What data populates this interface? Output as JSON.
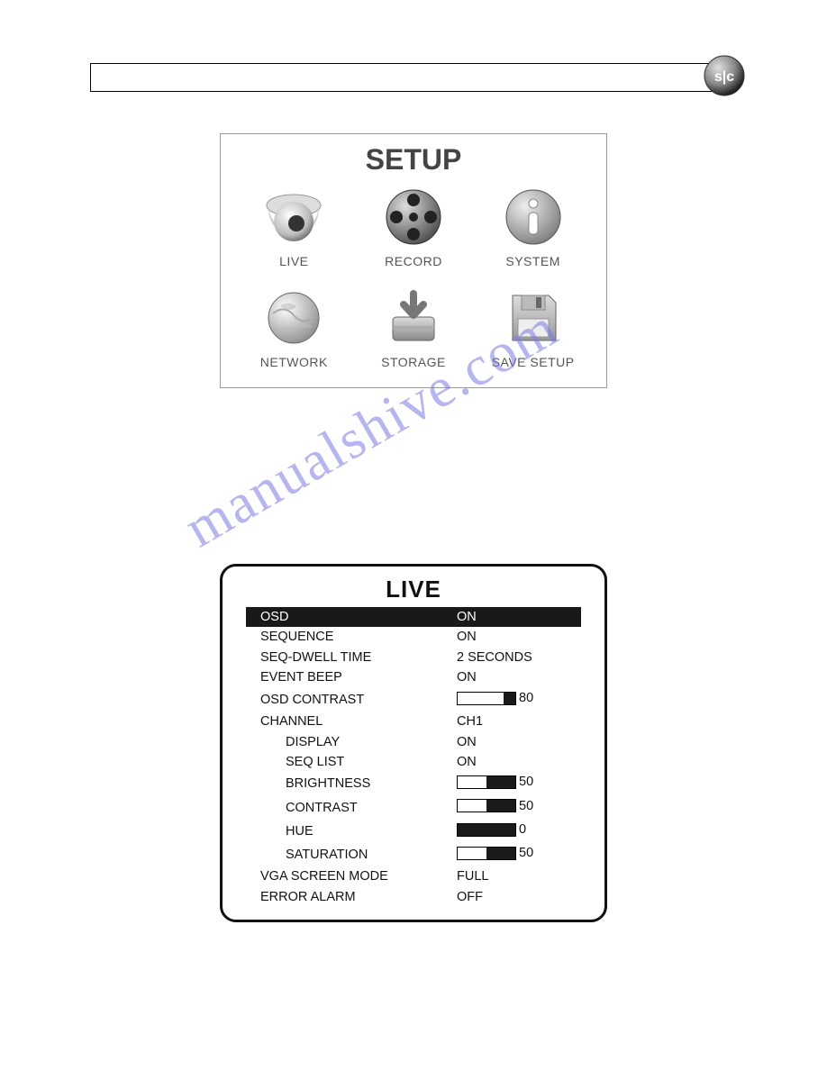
{
  "header": {
    "logo_text": "S|C"
  },
  "setup": {
    "title": "SETUP",
    "items": [
      {
        "label": "LIVE",
        "icon": "camera-dome-icon"
      },
      {
        "label": "RECORD",
        "icon": "film-reel-icon"
      },
      {
        "label": "SYSTEM",
        "icon": "info-icon"
      },
      {
        "label": "NETWORK",
        "icon": "globe-icon"
      },
      {
        "label": "STORAGE",
        "icon": "disk-download-icon"
      },
      {
        "label": "SAVE SETUP",
        "icon": "floppy-icon"
      }
    ]
  },
  "live": {
    "title": "LIVE",
    "rows": [
      {
        "label": "OSD",
        "value": "ON",
        "type": "text",
        "indent": 0,
        "selected": true
      },
      {
        "label": "SEQUENCE",
        "value": "ON",
        "type": "text",
        "indent": 0,
        "selected": false
      },
      {
        "label": "SEQ-DWELL TIME",
        "value": "2 SECONDS",
        "type": "text",
        "indent": 0,
        "selected": false
      },
      {
        "label": "EVENT BEEP",
        "value": "ON",
        "type": "text",
        "indent": 0,
        "selected": false
      },
      {
        "label": "OSD CONTRAST",
        "value": 80,
        "type": "slider",
        "max": 100,
        "indent": 0,
        "selected": false
      },
      {
        "label": "CHANNEL",
        "value": "CH1",
        "type": "text",
        "indent": 0,
        "selected": false
      },
      {
        "label": "DISPLAY",
        "value": "ON",
        "type": "text",
        "indent": 1,
        "selected": false
      },
      {
        "label": "SEQ LIST",
        "value": "ON",
        "type": "text",
        "indent": 1,
        "selected": false
      },
      {
        "label": "BRIGHTNESS",
        "value": 50,
        "type": "slider",
        "max": 100,
        "indent": 1,
        "selected": false
      },
      {
        "label": "CONTRAST",
        "value": 50,
        "type": "slider",
        "max": 100,
        "indent": 1,
        "selected": false
      },
      {
        "label": "HUE",
        "value": 0,
        "type": "slider",
        "max": 100,
        "indent": 1,
        "selected": false
      },
      {
        "label": "SATURATION",
        "value": 50,
        "type": "slider",
        "max": 100,
        "indent": 1,
        "selected": false
      },
      {
        "label": "VGA SCREEN MODE",
        "value": "FULL",
        "type": "text",
        "indent": 0,
        "selected": false
      },
      {
        "label": "ERROR ALARM",
        "value": "OFF",
        "type": "text",
        "indent": 0,
        "selected": false
      }
    ]
  },
  "watermark": "manualshive.com",
  "colors": {
    "panel_border": "#999999",
    "live_border": "#111111",
    "text": "#111111",
    "watermark": "#7a7ae8",
    "selected_bg": "#191919",
    "selected_fg": "#ffffff"
  }
}
